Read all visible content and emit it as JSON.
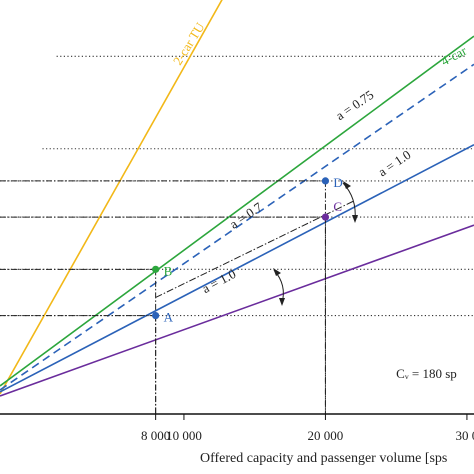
{
  "chart_data": {
    "type": "line",
    "title": "",
    "xlabel": "Offered capacity and passenger volume [sps",
    "ylabel": "",
    "xlim": [
      -3000,
      30500
    ],
    "ylim": [
      0,
      1
    ],
    "x_ticks": [
      {
        "value": 8000,
        "label": "8 000"
      },
      {
        "value": 10000,
        "label": "10 000"
      },
      {
        "value": 20000,
        "label": "20 000"
      },
      {
        "value": 30000,
        "label": "30 0"
      }
    ],
    "series": [
      {
        "name": "2-car TU",
        "color": "#f2b818",
        "points": [
          [
            -3000,
            0.02
          ],
          [
            13000,
            1.02
          ]
        ]
      },
      {
        "name": "4-car",
        "color": "#2ca63c",
        "points": [
          [
            -3000,
            0.04
          ],
          [
            30500,
            0.91
          ]
        ]
      },
      {
        "name": "",
        "color": "#2b62b8",
        "dashed": true,
        "points": [
          [
            -3000,
            0.03
          ],
          [
            30500,
            0.84
          ]
        ]
      },
      {
        "name": "",
        "color": "#2b62b8",
        "points": [
          [
            -3000,
            0.025
          ],
          [
            30500,
            0.64
          ]
        ]
      },
      {
        "name": "",
        "color": "#6a2c9c",
        "points": [
          [
            -3000,
            0.015
          ],
          [
            30500,
            0.44
          ]
        ]
      },
      {
        "name": "",
        "color": "#222222",
        "dashed": true,
        "points": [
          [
            8000,
            0.26
          ],
          [
            22000,
            0.5
          ]
        ]
      }
    ],
    "reference_lines": [
      {
        "y": 0.86,
        "x_start": 1000,
        "x_end": 30000
      },
      {
        "y": 0.63,
        "x_start": 0,
        "x_end": 30500
      },
      {
        "y": 0.55,
        "x_start": -3000,
        "x_end": 30500
      },
      {
        "y": 0.46,
        "x_start": -3000,
        "x_end": 30500
      },
      {
        "y": 0.33,
        "x_start": -3000,
        "x_end": 30500
      },
      {
        "y": 0.215,
        "x_start": -3000,
        "x_end": 30500
      }
    ],
    "points": [
      {
        "label": "A",
        "x": 8000,
        "y": 0.215,
        "color": "#2b62b8"
      },
      {
        "label": "B",
        "x": 8000,
        "y": 0.33,
        "color": "#2ca63c"
      },
      {
        "label": "C",
        "x": 20000,
        "y": 0.46,
        "color": "#6a2c9c"
      },
      {
        "label": "D",
        "x": 20000,
        "y": 0.55,
        "color": "#2b62b8"
      }
    ],
    "annotations": [
      {
        "text": "a = 0.75",
        "x": 21000,
        "y": 0.7
      },
      {
        "text": "a = 1.0",
        "x": 24000,
        "y": 0.56
      },
      {
        "text": "a = 0.7",
        "x": 13500,
        "y": 0.43
      },
      {
        "text": "a = 1.0",
        "x": 11500,
        "y": 0.27
      },
      {
        "text": "Cᵥ = 180 sp",
        "x": 25000,
        "y": 0.06
      }
    ],
    "grid": false
  }
}
